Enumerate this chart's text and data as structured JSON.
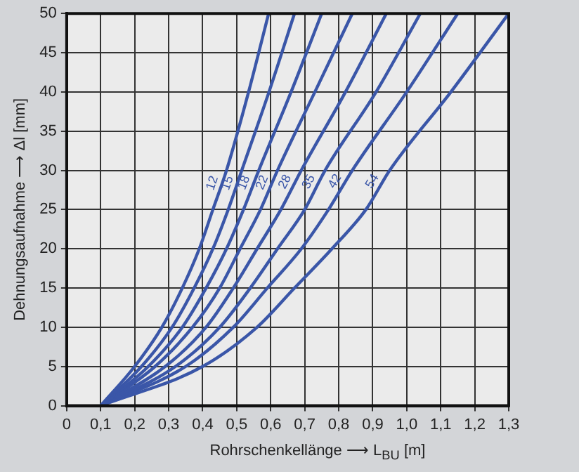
{
  "chart_data": {
    "type": "line",
    "xlabel": "Rohrschenkellänge ⟶ L$_{BU}$ [m]",
    "ylabel": "Dehnungsaufnahme ⟶ Δl [mm]",
    "xlim": [
      0,
      1.3
    ],
    "ylim": [
      0,
      50
    ],
    "xticks": [
      0,
      {
        "value": 0.1,
        "label": "0,1"
      },
      {
        "value": 0.2,
        "label": "0,2"
      },
      {
        "value": 0.3,
        "label": "0,3"
      },
      {
        "value": 0.4,
        "label": "0,4"
      },
      {
        "value": 0.5,
        "label": "0,5"
      },
      {
        "value": 0.6,
        "label": "0,6"
      },
      {
        "value": 0.7,
        "label": "0,7"
      },
      {
        "value": 0.8,
        "label": "0,8"
      },
      {
        "value": 0.9,
        "label": "0,9"
      },
      {
        "value": 1.0,
        "label": "1,0"
      },
      {
        "value": 1.1,
        "label": "1,1"
      },
      {
        "value": 1.2,
        "label": "1,2"
      },
      {
        "value": 1.3,
        "label": "1,3"
      }
    ],
    "yticks": [
      0,
      5,
      10,
      15,
      20,
      25,
      30,
      35,
      40,
      45,
      50
    ],
    "grid": true,
    "legend": false,
    "marker": "none",
    "line_style": "solid",
    "series": [
      {
        "name": "12",
        "color": "#3a56a8",
        "x": [
          0.1,
          0.2,
          0.28,
          0.34,
          0.39,
          0.43,
          0.47,
          0.535,
          0.594
        ],
        "values": [
          0,
          5,
          10,
          15,
          20,
          25,
          30,
          40,
          50
        ]
      },
      {
        "name": "15",
        "color": "#3a56a8",
        "x": [
          0.1,
          0.22,
          0.31,
          0.375,
          0.43,
          0.475,
          0.515,
          0.595,
          0.67
        ],
        "values": [
          0,
          5,
          10,
          15,
          20,
          25,
          30,
          40,
          50
        ]
      },
      {
        "name": "18",
        "color": "#3a56a8",
        "x": [
          0.1,
          0.24,
          0.34,
          0.41,
          0.47,
          0.52,
          0.565,
          0.66,
          0.75
        ],
        "values": [
          0,
          5,
          10,
          15,
          20,
          25,
          30,
          40,
          50
        ]
      },
      {
        "name": "22",
        "color": "#3a56a8",
        "x": [
          0.1,
          0.26,
          0.37,
          0.45,
          0.51,
          0.57,
          0.62,
          0.73,
          0.84
        ],
        "values": [
          0,
          5,
          10,
          15,
          20,
          25,
          30,
          40,
          50
        ]
      },
      {
        "name": "28",
        "color": "#3a56a8",
        "x": [
          0.1,
          0.29,
          0.41,
          0.49,
          0.56,
          0.63,
          0.69,
          0.82,
          0.94
        ],
        "values": [
          0,
          5,
          10,
          15,
          20,
          25,
          30,
          40,
          50
        ]
      },
      {
        "name": "35",
        "color": "#3a56a8",
        "x": [
          0.1,
          0.32,
          0.45,
          0.54,
          0.62,
          0.7,
          0.76,
          0.91,
          1.04
        ],
        "values": [
          0,
          5,
          10,
          15,
          20,
          25,
          30,
          40,
          50
        ]
      },
      {
        "name": "42",
        "color": "#3a56a8",
        "x": [
          0.1,
          0.35,
          0.49,
          0.59,
          0.69,
          0.77,
          0.84,
          1.0,
          1.15
        ],
        "values": [
          0,
          5,
          10,
          15,
          20,
          25,
          30,
          40,
          50
        ]
      },
      {
        "name": "54",
        "color": "#3a56a8",
        "x": [
          0.1,
          0.4,
          0.56,
          0.67,
          0.78,
          0.88,
          0.95,
          1.13,
          1.3
        ],
        "values": [
          0,
          5,
          10,
          15,
          20,
          25,
          30,
          40,
          50
        ]
      }
    ]
  }
}
